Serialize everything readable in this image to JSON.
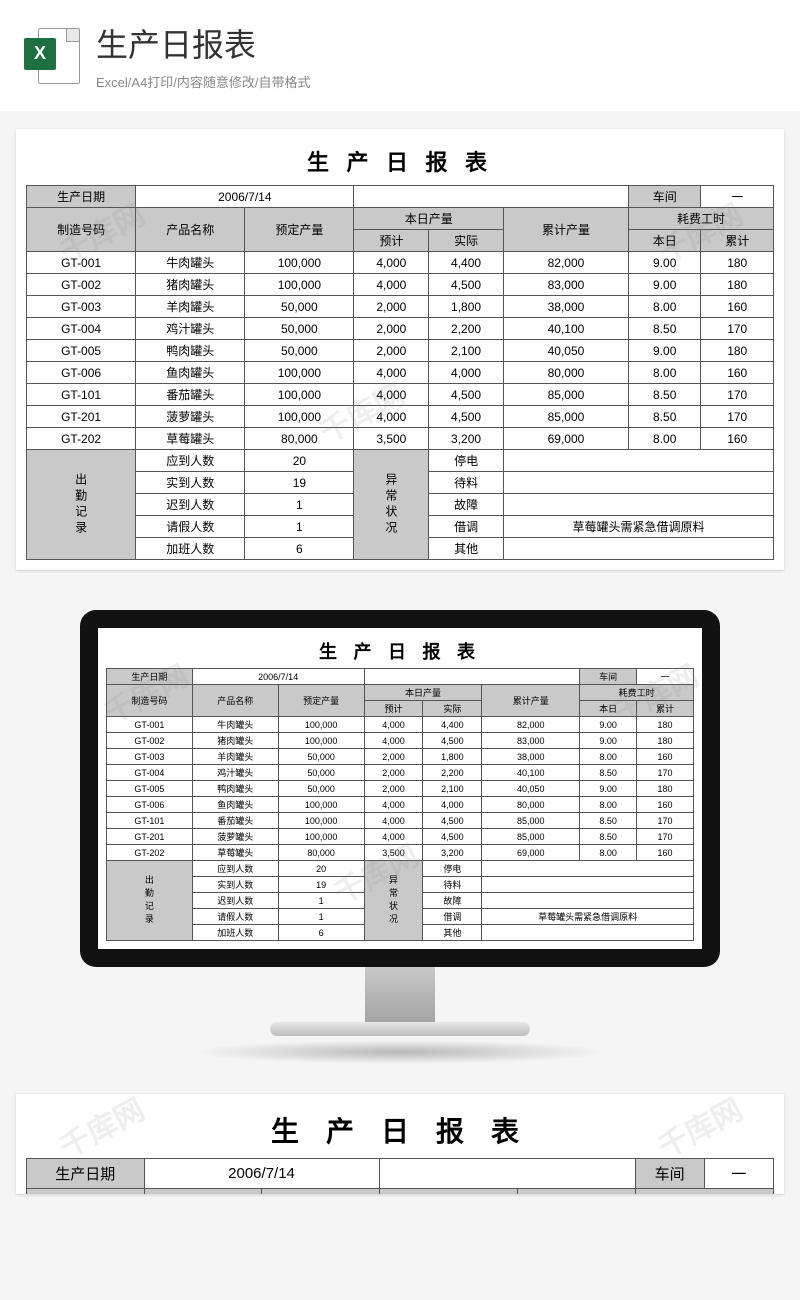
{
  "header": {
    "title": "生产日报表",
    "subtitle": "Excel/A4打印/内容随意修改/自带格式",
    "icon_letter": "X"
  },
  "report": {
    "title": "生 产 日 报 表",
    "date_label": "生产日期",
    "date_value": "2006/7/14",
    "workshop_label": "车间",
    "workshop_value": "一",
    "columns": {
      "mfg_no": "制造号码",
      "product": "产品名称",
      "planned": "预定产量",
      "today_group": "本日产量",
      "today_plan": "预计",
      "today_actual": "实际",
      "cumulative": "累计产量",
      "hours_group": "耗费工时",
      "hours_today": "本日",
      "hours_cum": "累计"
    },
    "rows": [
      {
        "no": "GT-001",
        "name": "牛肉罐头",
        "plan": "100,000",
        "tp": "4,000",
        "ta": "4,400",
        "cum": "82,000",
        "hd": "9.00",
        "hc": "180"
      },
      {
        "no": "GT-002",
        "name": "猪肉罐头",
        "plan": "100,000",
        "tp": "4,000",
        "ta": "4,500",
        "cum": "83,000",
        "hd": "9.00",
        "hc": "180"
      },
      {
        "no": "GT-003",
        "name": "羊肉罐头",
        "plan": "50,000",
        "tp": "2,000",
        "ta": "1,800",
        "cum": "38,000",
        "hd": "8.00",
        "hc": "160"
      },
      {
        "no": "GT-004",
        "name": "鸡汁罐头",
        "plan": "50,000",
        "tp": "2,000",
        "ta": "2,200",
        "cum": "40,100",
        "hd": "8.50",
        "hc": "170"
      },
      {
        "no": "GT-005",
        "name": "鸭肉罐头",
        "plan": "50,000",
        "tp": "2,000",
        "ta": "2,100",
        "cum": "40,050",
        "hd": "9.00",
        "hc": "180"
      },
      {
        "no": "GT-006",
        "name": "鱼肉罐头",
        "plan": "100,000",
        "tp": "4,000",
        "ta": "4,000",
        "cum": "80,000",
        "hd": "8.00",
        "hc": "160"
      },
      {
        "no": "GT-101",
        "name": "番茄罐头",
        "plan": "100,000",
        "tp": "4,000",
        "ta": "4,500",
        "cum": "85,000",
        "hd": "8.50",
        "hc": "170"
      },
      {
        "no": "GT-201",
        "name": "菠萝罐头",
        "plan": "100,000",
        "tp": "4,000",
        "ta": "4,500",
        "cum": "85,000",
        "hd": "8.50",
        "hc": "170"
      },
      {
        "no": "GT-202",
        "name": "草莓罐头",
        "plan": "80,000",
        "tp": "3,500",
        "ta": "3,200",
        "cum": "69,000",
        "hd": "8.00",
        "hc": "160"
      }
    ],
    "attendance": {
      "label": "出勤记录",
      "items": [
        {
          "k": "应到人数",
          "v": "20"
        },
        {
          "k": "实到人数",
          "v": "19"
        },
        {
          "k": "迟到人数",
          "v": "1"
        },
        {
          "k": "请假人数",
          "v": "1"
        },
        {
          "k": "加班人数",
          "v": "6"
        }
      ]
    },
    "abnormal": {
      "label": "异常状况",
      "items": [
        {
          "k": "停电",
          "v": ""
        },
        {
          "k": "待料",
          "v": ""
        },
        {
          "k": "故障",
          "v": ""
        },
        {
          "k": "借调",
          "v": "草莓罐头需紧急借调原料"
        },
        {
          "k": "其他",
          "v": ""
        }
      ]
    }
  },
  "watermark_text": "千库网"
}
